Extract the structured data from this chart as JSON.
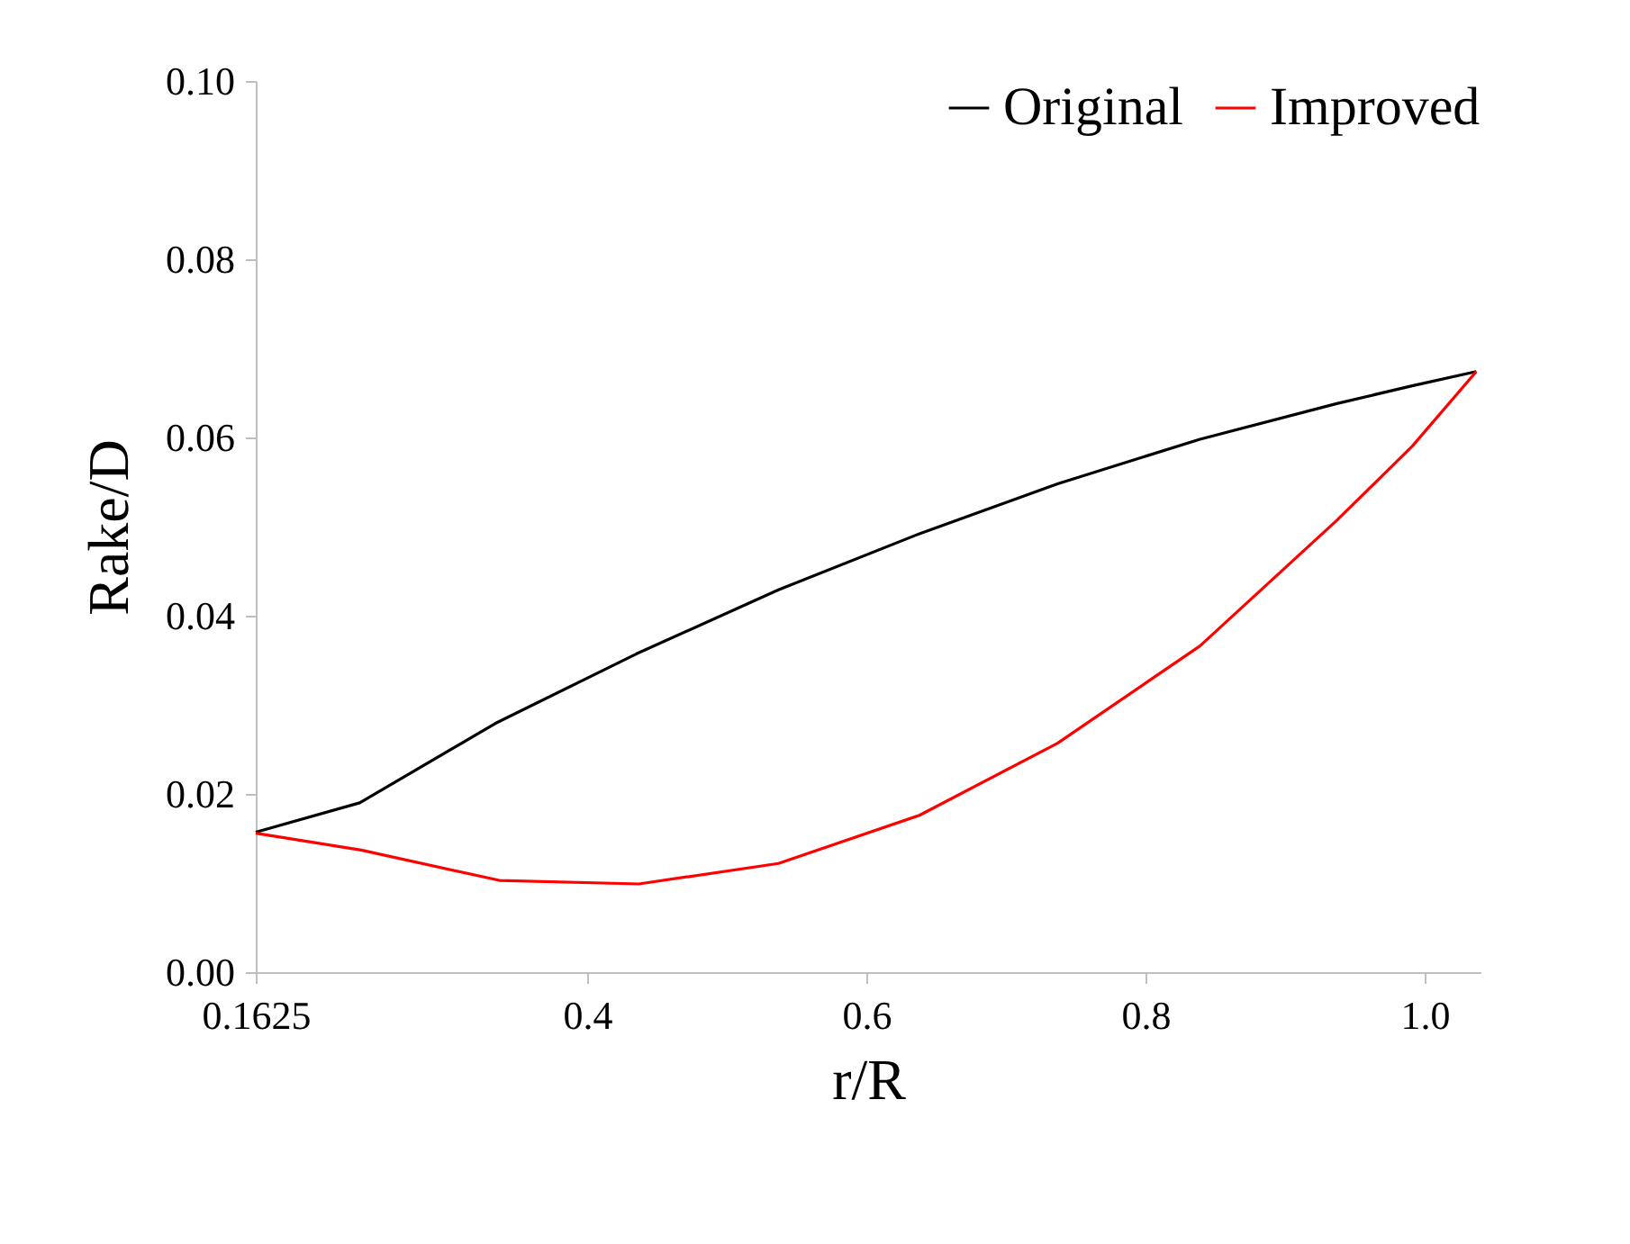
{
  "chart_data": {
    "type": "line",
    "xlabel": "r/R",
    "ylabel": "Rake/D",
    "xlim": [
      0.1625,
      1.04
    ],
    "xticks": [
      0.1625,
      0.4,
      0.6,
      0.8,
      {
        "value": 1.0,
        "label": "1.0"
      }
    ],
    "ylim": [
      0,
      0.1
    ],
    "yticks": [
      {
        "value": 0,
        "label": "0.00"
      },
      {
        "value": 0.02,
        "label": "0.02"
      },
      {
        "value": 0.04,
        "label": "0.04"
      },
      {
        "value": 0.06,
        "label": "0.06"
      },
      {
        "value": 0.08,
        "label": "0.08"
      },
      {
        "value": 0.1,
        "label": "0.10"
      }
    ],
    "grid": false,
    "legend": "top right",
    "marker": "none",
    "line_style": "solid",
    "series": [
      {
        "name": "Original",
        "color": "#000000",
        "x": [
          0.1625,
          0.237,
          0.334,
          0.435,
          0.537,
          0.638,
          0.737,
          0.839,
          0.937,
          0.991,
          1.037
        ],
        "values": [
          0.0157,
          0.019,
          0.0279,
          0.0357,
          0.0429,
          0.0492,
          0.0548,
          0.0598,
          0.0638,
          0.0658,
          0.0674
        ]
      },
      {
        "name": "Improved",
        "color": "#ff0000",
        "x": [
          0.1625,
          0.238,
          0.337,
          0.437,
          0.537,
          0.638,
          0.737,
          0.839,
          0.937,
          0.991,
          1.037
        ],
        "values": [
          0.0156,
          0.0137,
          0.0103,
          0.0099,
          0.0122,
          0.0176,
          0.0257,
          0.0366,
          0.0507,
          0.059,
          0.0674
        ]
      }
    ]
  }
}
